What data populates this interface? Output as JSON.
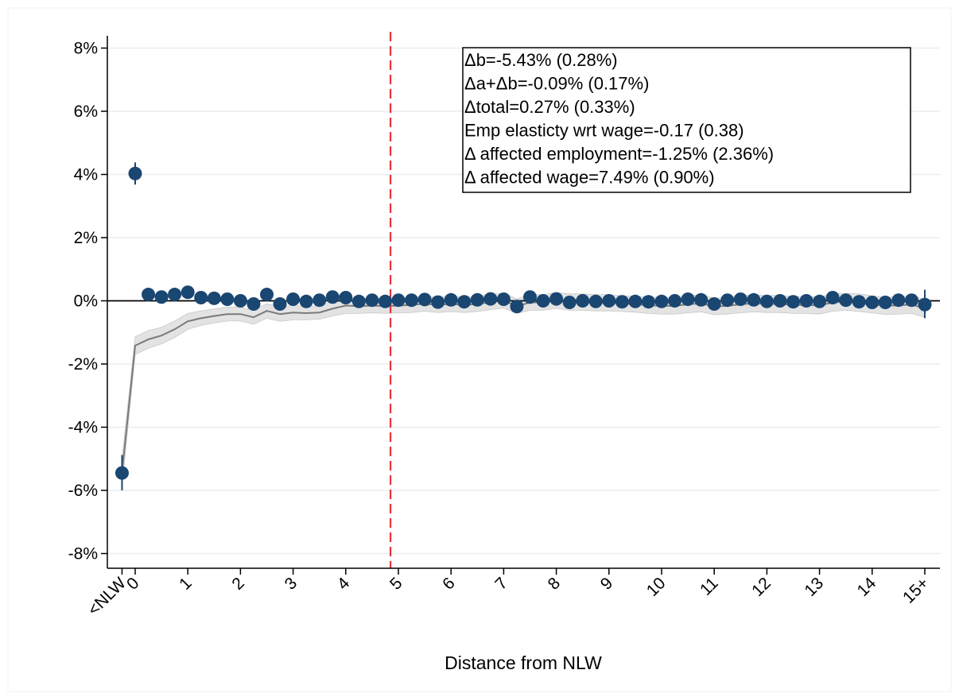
{
  "chart_data": {
    "type": "scatter",
    "title": "",
    "xlabel": "Distance from NLW",
    "ylabel": "",
    "ylim": [
      -8.5,
      8.5
    ],
    "xlim": [
      -0.35,
      15.3
    ],
    "y_ticks": [
      {
        "value": 8,
        "label": "8%"
      },
      {
        "value": 6,
        "label": "6%"
      },
      {
        "value": 4,
        "label": "4%"
      },
      {
        "value": 2,
        "label": "2%"
      },
      {
        "value": 0,
        "label": "0%"
      },
      {
        "value": -2,
        "label": "-2%"
      },
      {
        "value": -4,
        "label": "-4%"
      },
      {
        "value": -6,
        "label": "-6%"
      },
      {
        "value": -8,
        "label": "-8%"
      }
    ],
    "x_ticks": [
      {
        "value": -0.25,
        "label": "<NLW"
      },
      {
        "value": 0,
        "label": "0"
      },
      {
        "value": 1,
        "label": "1"
      },
      {
        "value": 2,
        "label": "2"
      },
      {
        "value": 3,
        "label": "3"
      },
      {
        "value": 4,
        "label": "4"
      },
      {
        "value": 5,
        "label": "5"
      },
      {
        "value": 6,
        "label": "6"
      },
      {
        "value": 7,
        "label": "7"
      },
      {
        "value": 8,
        "label": "8"
      },
      {
        "value": 9,
        "label": "9"
      },
      {
        "value": 10,
        "label": "10"
      },
      {
        "value": 11,
        "label": "11"
      },
      {
        "value": 12,
        "label": "12"
      },
      {
        "value": 13,
        "label": "13"
      },
      {
        "value": 14,
        "label": "14"
      },
      {
        "value": 15,
        "label": "15+"
      }
    ],
    "vertical_reference_x": 4.85,
    "grid": true,
    "points": {
      "x": [
        -0.25,
        0,
        0.25,
        0.5,
        0.75,
        1,
        1.25,
        1.5,
        1.75,
        2,
        2.25,
        2.5,
        2.75,
        3,
        3.25,
        3.5,
        3.75,
        4,
        4.25,
        4.5,
        4.75,
        5,
        5.25,
        5.5,
        5.75,
        6,
        6.25,
        6.5,
        6.75,
        7,
        7.25,
        7.5,
        7.75,
        8,
        8.25,
        8.5,
        8.75,
        9,
        9.25,
        9.5,
        9.75,
        10,
        10.25,
        10.5,
        10.75,
        11,
        11.25,
        11.5,
        11.75,
        12,
        12.25,
        12.5,
        12.75,
        13,
        13.25,
        13.5,
        13.75,
        14,
        14.25,
        14.5,
        14.75,
        15
      ],
      "y": [
        -5.45,
        4.03,
        0.2,
        0.12,
        0.2,
        0.27,
        0.1,
        0.08,
        0.05,
        0.0,
        -0.1,
        0.2,
        -0.1,
        0.05,
        -0.02,
        0.02,
        0.12,
        0.1,
        -0.02,
        0.02,
        -0.02,
        0.02,
        0.02,
        0.04,
        -0.04,
        0.03,
        -0.03,
        0.03,
        0.06,
        0.05,
        -0.18,
        0.12,
        0.0,
        0.06,
        -0.05,
        0.0,
        -0.02,
        0.0,
        -0.03,
        -0.02,
        -0.03,
        -0.02,
        0.0,
        0.05,
        0.03,
        -0.1,
        0.02,
        0.05,
        0.03,
        -0.02,
        0.0,
        -0.03,
        0.0,
        -0.02,
        0.1,
        0.02,
        -0.03,
        -0.05,
        -0.05,
        0.02,
        0.02,
        -0.12
      ],
      "ci_low": [
        -6.0,
        3.68,
        0.12,
        0.06,
        0.14,
        0.19,
        0.04,
        0.02,
        0.0,
        -0.06,
        -0.17,
        0.13,
        -0.17,
        -0.01,
        -0.08,
        -0.04,
        0.05,
        0.03,
        -0.08,
        -0.04,
        -0.08,
        -0.04,
        -0.04,
        -0.02,
        -0.1,
        -0.03,
        -0.09,
        -0.03,
        0.0,
        -0.01,
        -0.25,
        0.05,
        -0.06,
        0.0,
        -0.11,
        -0.06,
        -0.08,
        -0.06,
        -0.09,
        -0.08,
        -0.09,
        -0.08,
        -0.06,
        -0.01,
        -0.03,
        -0.17,
        -0.04,
        -0.01,
        -0.03,
        -0.08,
        -0.06,
        -0.09,
        -0.06,
        -0.08,
        0.04,
        -0.04,
        -0.09,
        -0.11,
        -0.11,
        -0.04,
        -0.04,
        -0.55
      ],
      "ci_high": [
        -4.88,
        4.38,
        0.28,
        0.18,
        0.26,
        0.35,
        0.16,
        0.14,
        0.1,
        0.06,
        -0.03,
        0.27,
        -0.03,
        0.11,
        0.04,
        0.08,
        0.19,
        0.17,
        0.04,
        0.08,
        0.04,
        0.08,
        0.08,
        0.1,
        0.02,
        0.09,
        0.03,
        0.09,
        0.12,
        0.11,
        -0.11,
        0.19,
        0.06,
        0.12,
        0.01,
        0.06,
        0.04,
        0.06,
        0.03,
        0.04,
        0.03,
        0.04,
        0.06,
        0.11,
        0.09,
        -0.03,
        0.08,
        0.11,
        0.09,
        0.04,
        0.06,
        0.03,
        0.06,
        0.04,
        0.16,
        0.08,
        0.03,
        0.01,
        0.01,
        0.08,
        0.08,
        0.35
      ]
    },
    "cumulative_line": {
      "x": [
        -0.25,
        0,
        0.25,
        0.5,
        0.75,
        1,
        1.25,
        1.5,
        1.75,
        2,
        2.25,
        2.5,
        2.75,
        3,
        3.25,
        3.5,
        3.75,
        4,
        4.25,
        4.5,
        4.75,
        5,
        5.25,
        5.5,
        5.75,
        6,
        6.25,
        6.5,
        6.75,
        7,
        7.25,
        7.5,
        7.75,
        8,
        8.25,
        8.5,
        8.75,
        9,
        9.25,
        9.5,
        9.75,
        10,
        10.25,
        10.5,
        10.75,
        11,
        11.25,
        11.5,
        11.75,
        12,
        12.25,
        12.5,
        12.75,
        13,
        13.25,
        13.5,
        13.75,
        14,
        14.25,
        14.5,
        14.75,
        15
      ],
      "y": [
        -5.45,
        -1.42,
        -1.22,
        -1.1,
        -0.9,
        -0.65,
        -0.55,
        -0.48,
        -0.42,
        -0.42,
        -0.52,
        -0.32,
        -0.42,
        -0.37,
        -0.39,
        -0.37,
        -0.25,
        -0.15,
        -0.17,
        -0.15,
        -0.17,
        -0.15,
        -0.13,
        -0.09,
        -0.13,
        -0.1,
        -0.13,
        -0.1,
        -0.04,
        0.01,
        -0.17,
        -0.05,
        -0.05,
        0.01,
        -0.04,
        -0.04,
        -0.06,
        -0.06,
        -0.09,
        -0.11,
        -0.14,
        -0.16,
        -0.16,
        -0.11,
        -0.08,
        -0.18,
        -0.16,
        -0.11,
        -0.08,
        -0.1,
        -0.1,
        -0.13,
        -0.13,
        -0.15,
        -0.05,
        -0.03,
        -0.06,
        -0.11,
        -0.16,
        -0.14,
        -0.12,
        -0.24
      ],
      "band_low": [
        -5.9,
        -1.7,
        -1.5,
        -1.36,
        -1.16,
        -0.9,
        -0.78,
        -0.7,
        -0.64,
        -0.64,
        -0.74,
        -0.55,
        -0.65,
        -0.6,
        -0.6,
        -0.58,
        -0.48,
        -0.4,
        -0.4,
        -0.38,
        -0.4,
        -0.38,
        -0.37,
        -0.33,
        -0.37,
        -0.34,
        -0.37,
        -0.34,
        -0.28,
        -0.23,
        -0.4,
        -0.3,
        -0.3,
        -0.24,
        -0.3,
        -0.3,
        -0.32,
        -0.32,
        -0.34,
        -0.36,
        -0.4,
        -0.42,
        -0.42,
        -0.38,
        -0.35,
        -0.44,
        -0.42,
        -0.38,
        -0.35,
        -0.37,
        -0.37,
        -0.4,
        -0.4,
        -0.42,
        -0.33,
        -0.3,
        -0.34,
        -0.38,
        -0.43,
        -0.42,
        -0.4,
        -0.52
      ],
      "band_high": [
        -5.0,
        -1.14,
        -0.94,
        -0.84,
        -0.64,
        -0.4,
        -0.32,
        -0.26,
        -0.2,
        -0.2,
        -0.3,
        -0.09,
        -0.19,
        -0.14,
        -0.18,
        -0.16,
        -0.02,
        0.1,
        0.06,
        0.08,
        0.06,
        0.08,
        0.11,
        0.15,
        0.11,
        0.14,
        0.11,
        0.14,
        0.2,
        0.25,
        0.06,
        0.2,
        0.2,
        0.26,
        0.22,
        0.22,
        0.2,
        0.2,
        0.16,
        0.14,
        0.12,
        0.1,
        0.1,
        0.16,
        0.19,
        0.08,
        0.1,
        0.16,
        0.19,
        0.17,
        0.17,
        0.14,
        0.14,
        0.12,
        0.23,
        0.24,
        0.22,
        0.16,
        0.11,
        0.14,
        0.16,
        0.04
      ]
    },
    "annotations": [
      "Δb=-5.43% (0.28%)",
      "Δa+Δb=-0.09% (0.17%)",
      "Δtotal=0.27% (0.33%)",
      "Emp elasticty wrt wage=-0.17 (0.38)",
      "Δ affected employment=-1.25% (2.36%)",
      "Δ affected wage=7.49% (0.90%)"
    ],
    "colors": {
      "points": "#1a4672",
      "line": "#7a7a7a",
      "band": "#d9d9d9",
      "reference": "#e8333a",
      "grid": "#e8eef2",
      "zero_line": "#000000"
    }
  }
}
